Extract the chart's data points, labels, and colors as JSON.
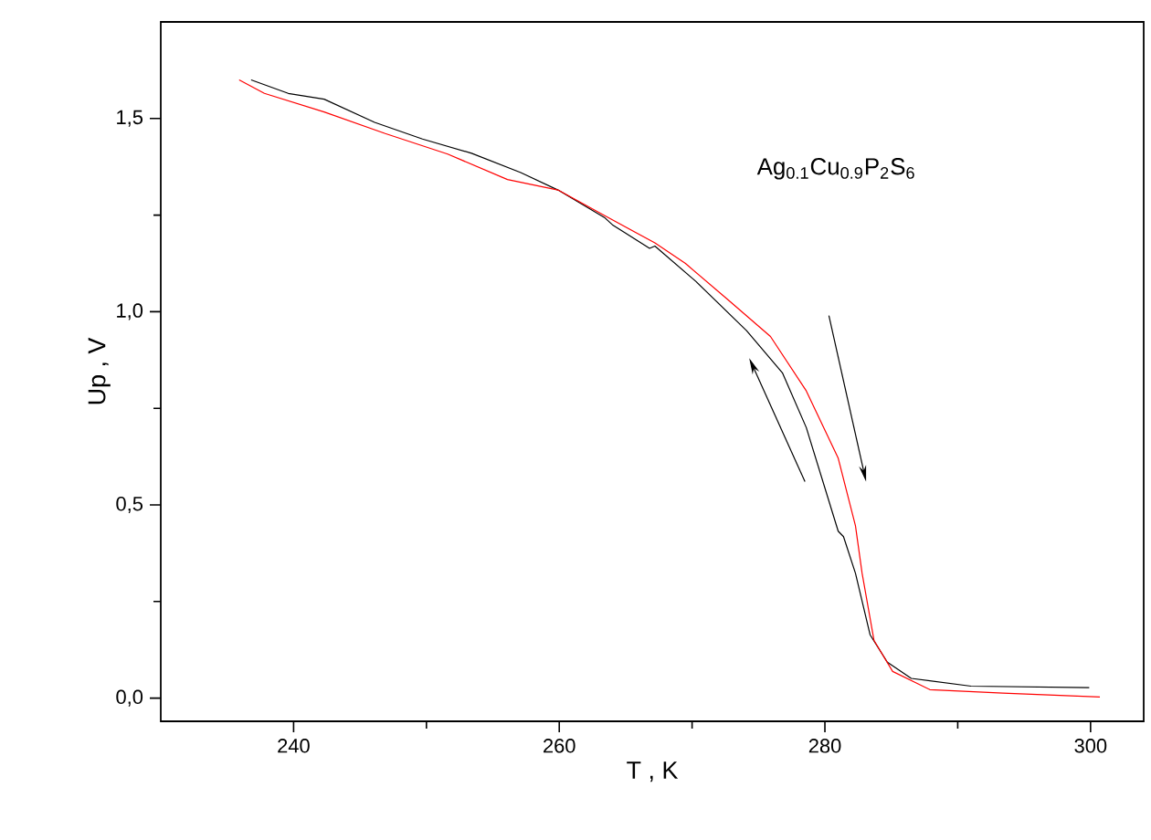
{
  "chart_data": {
    "type": "line",
    "xlabel": "T , K",
    "ylabel": "Up , V",
    "annotations": [
      "Ag$_{0.1}$Cu$_{0.9}$P$_{2}$S$_{6}$"
    ],
    "xlim": [
      230,
      304
    ],
    "ylim": [
      -0.06,
      1.75
    ],
    "xticks": [
      240,
      {
        "value": 250,
        "label": null
      },
      260,
      {
        "value": 270,
        "label": null
      },
      280,
      {
        "value": 290,
        "label": null
      },
      300
    ],
    "yticks": [
      {
        "value": 0,
        "label": "0,0"
      },
      {
        "value": 0.25,
        "label": null
      },
      {
        "value": 0.5,
        "label": "0,5"
      },
      {
        "value": 0.75,
        "label": null
      },
      {
        "value": 1.0,
        "label": "1,0"
      },
      {
        "value": 1.25,
        "label": null
      },
      {
        "value": 1.5,
        "label": "1,5"
      }
    ],
    "marker": "none",
    "line_style": "solid",
    "series": [
      {
        "color": "#000000",
        "x": [
          236.8,
          239.6,
          242.3,
          246.1,
          249.7,
          253.4,
          257.1,
          259.9,
          263.4,
          264,
          266.8,
          267.2,
          270.3,
          274.1,
          276.8,
          278.6,
          281,
          281.4,
          282.3,
          283.4,
          284.7,
          286.5,
          291,
          299.9
        ],
        "values": [
          1.6,
          1.565,
          1.55,
          1.49,
          1.447,
          1.41,
          1.36,
          1.315,
          1.244,
          1.225,
          1.164,
          1.17,
          1.078,
          0.951,
          0.842,
          0.7,
          0.432,
          0.418,
          0.323,
          0.164,
          0.093,
          0.051,
          0.031,
          0.027
        ]
      },
      {
        "color": "#ff0000",
        "x": [
          235.9,
          237.8,
          242.3,
          246.9,
          251.6,
          256.1,
          259.9,
          263.4,
          267.2,
          269.5,
          272.7,
          275.9,
          278.6,
          281,
          282.3,
          282.8,
          283.7,
          285.1,
          287.9,
          293.4,
          300.7
        ],
        "values": [
          1.6,
          1.565,
          1.517,
          1.461,
          1.408,
          1.342,
          1.315,
          1.249,
          1.178,
          1.125,
          1.031,
          0.936,
          0.795,
          0.621,
          0.446,
          0.323,
          0.149,
          0.069,
          0.022,
          0.013,
          0.003
        ]
      }
    ]
  }
}
